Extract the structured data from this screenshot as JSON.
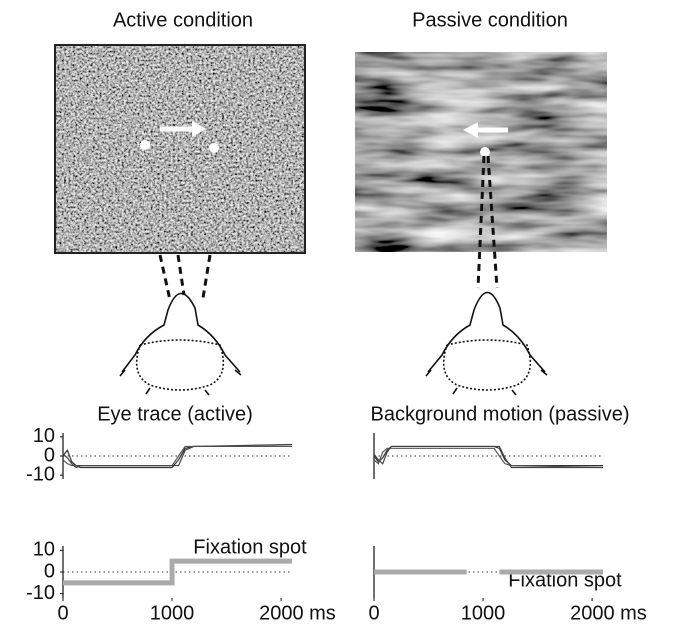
{
  "panels": {
    "active": "Active condition",
    "passive": "Passive condition"
  },
  "chart_data": [
    {
      "type": "line",
      "title": "Eye trace (active)",
      "x": [
        0,
        40,
        80,
        120,
        160,
        1000,
        1060,
        1120,
        1200,
        2100
      ],
      "series": [
        {
          "color": "#333333",
          "values": [
            0,
            3,
            -3,
            -5,
            -6,
            -6,
            -2,
            4,
            5,
            5
          ]
        },
        {
          "color": "#555555",
          "values": [
            -2,
            -4,
            -5,
            -5,
            -5,
            -5,
            0,
            5,
            5,
            5
          ]
        },
        {
          "color": "#444444",
          "values": [
            1,
            -1,
            -4,
            -6,
            -5,
            -5,
            -5,
            3,
            5,
            6
          ]
        }
      ],
      "xlim": [
        0,
        2100
      ],
      "ylim": [
        -12,
        12
      ],
      "yticks": [
        10,
        0,
        -10
      ],
      "zero_line": true
    },
    {
      "type": "line",
      "title": "Fixation spot",
      "x": [
        0,
        1000,
        1000,
        2100
      ],
      "series": [
        {
          "color": "#aaaaaa",
          "values": [
            -5,
            -5,
            5,
            5
          ]
        }
      ],
      "xlim": [
        0,
        2100
      ],
      "ylim": [
        -12,
        12
      ],
      "yticks": [
        10,
        0,
        -10
      ],
      "xticks": [
        0,
        1000,
        {
          "value": 2000,
          "label": "2000 ms"
        }
      ],
      "zero_line": true
    },
    {
      "type": "line",
      "title": "Background motion (passive)",
      "x": [
        0,
        40,
        80,
        120,
        160,
        1100,
        1150,
        1200,
        1260,
        2100
      ],
      "series": [
        {
          "color": "#333333",
          "values": [
            0,
            -3,
            -1,
            3,
            5,
            5,
            4,
            -2,
            -5,
            -5
          ]
        },
        {
          "color": "#555555",
          "values": [
            -2,
            -4,
            2,
            4,
            4,
            4,
            0,
            -4,
            -5,
            -6
          ]
        },
        {
          "color": "#444444",
          "values": [
            1,
            -2,
            -4,
            2,
            5,
            5,
            5,
            -1,
            -6,
            -6
          ]
        }
      ],
      "xlim": [
        0,
        2100
      ],
      "ylim": [
        -12,
        12
      ],
      "zero_line": true
    },
    {
      "type": "line",
      "title": "Fixation spot",
      "x": [
        0,
        850,
        1000,
        1150,
        2100
      ],
      "series": [
        {
          "color": "#aaaaaa",
          "values": [
            0,
            0,
            null,
            0,
            0
          ]
        }
      ],
      "xlim": [
        0,
        2100
      ],
      "ylim": [
        -12,
        12
      ],
      "xticks": [
        0,
        1000,
        {
          "value": 2000,
          "label": "2000 ms"
        }
      ],
      "zero_line": true
    }
  ]
}
